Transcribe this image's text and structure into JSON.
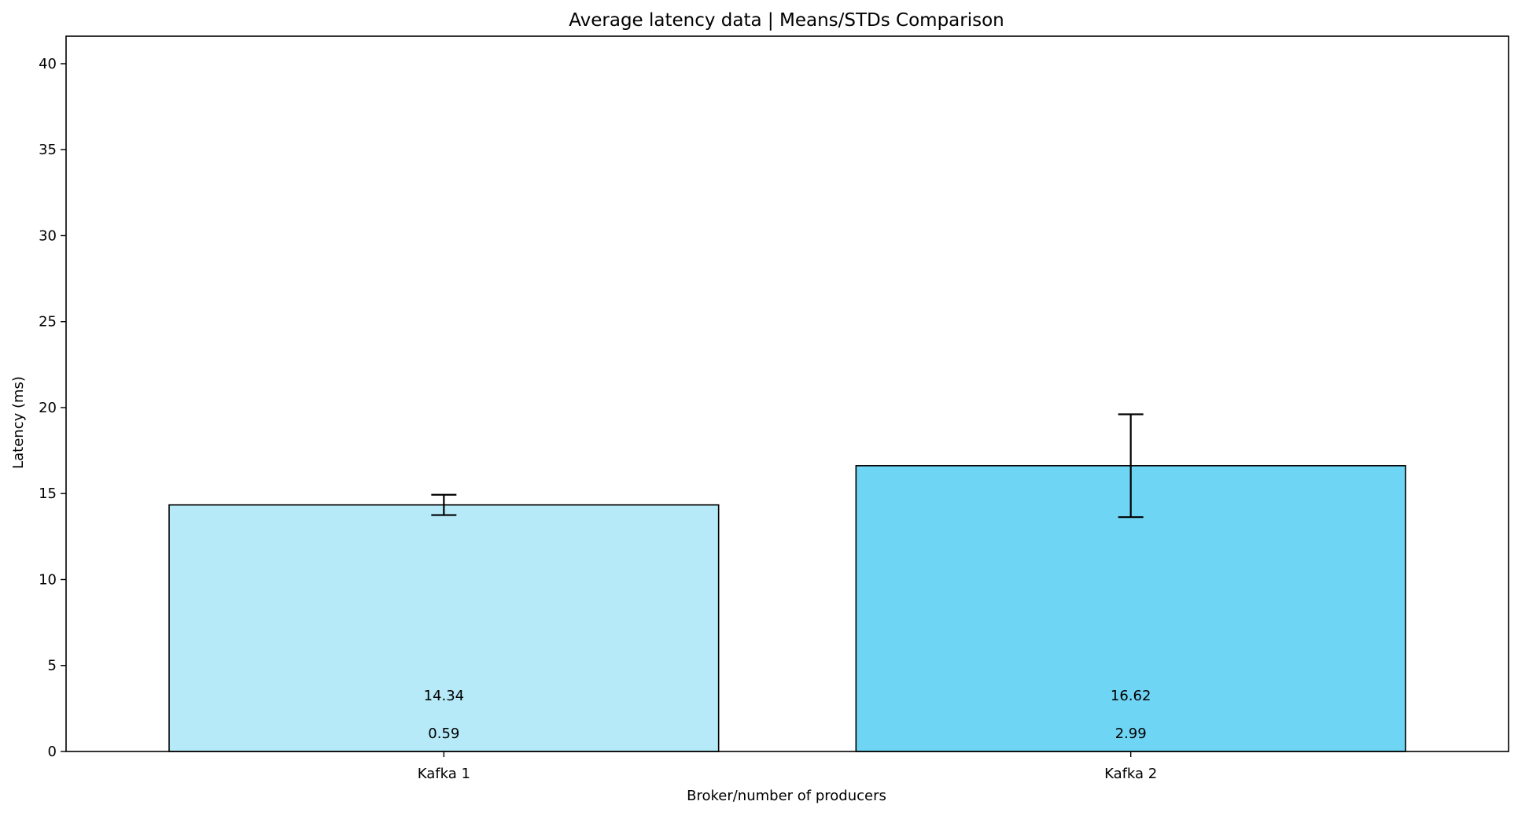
{
  "chart_data": {
    "type": "bar",
    "title": "Average latency data | Means/STDs Comparison",
    "xlabel": "Broker/number of producers",
    "ylabel": "Latency (ms)",
    "categories": [
      "Kafka 1",
      "Kafka 2"
    ],
    "values": [
      14.34,
      16.62
    ],
    "errors": [
      0.59,
      2.99
    ],
    "value_labels": [
      "14.34",
      "16.62"
    ],
    "error_labels": [
      "0.59",
      "2.99"
    ],
    "bar_colors": [
      "#b6eaf8",
      "#6fd5f4"
    ],
    "bar_edge_color": "#000000",
    "ylim": [
      0,
      41.6
    ],
    "yticks": [
      0,
      5,
      10,
      15,
      20,
      25,
      30,
      35,
      40
    ],
    "grid": false,
    "legend": "none"
  }
}
